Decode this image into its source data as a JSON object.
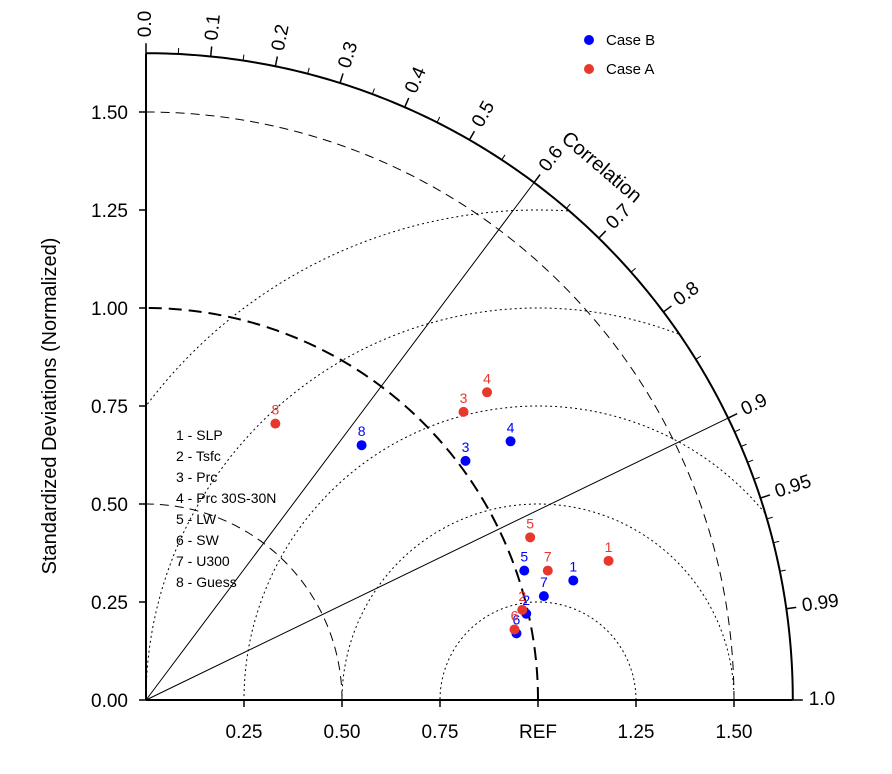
{
  "chart_data": {
    "type": "taylor",
    "ylabel": "Standardized Deviations (Normalized)",
    "correlation_label": "Correlation",
    "ref_label": "REF",
    "max_std": 1.65,
    "x_ticks": [
      {
        "value": 0.25,
        "label": "0.25"
      },
      {
        "value": 0.5,
        "label": "0.50"
      },
      {
        "value": 0.75,
        "label": "0.75"
      },
      {
        "value": 1.0,
        "label": "REF"
      },
      {
        "value": 1.25,
        "label": "1.25"
      },
      {
        "value": 1.5,
        "label": "1.50"
      }
    ],
    "y_ticks": [
      {
        "value": 0.0,
        "label": "0.00"
      },
      {
        "value": 0.25,
        "label": "0.25"
      },
      {
        "value": 0.5,
        "label": "0.50"
      },
      {
        "value": 0.75,
        "label": "0.75"
      },
      {
        "value": 1.0,
        "label": "1.00"
      },
      {
        "value": 1.25,
        "label": "1.25"
      },
      {
        "value": 1.5,
        "label": "1.50"
      }
    ],
    "corr_labels": [
      "0.0",
      "0.1",
      "0.2",
      "0.3",
      "0.4",
      "0.5",
      "0.6",
      "0.7",
      "0.8",
      "0.9",
      "0.95",
      "0.99",
      "1.0"
    ],
    "corr_minor": [
      0.05,
      0.15,
      0.25,
      0.35,
      0.45,
      0.55,
      0.65,
      0.75,
      0.85,
      0.91,
      0.92,
      0.93,
      0.94,
      0.96,
      0.97,
      0.98
    ],
    "radial_lines": [
      0.6,
      0.9
    ],
    "std_arcs": [
      0.5,
      1.5
    ],
    "rms_circles": [
      0.25,
      0.5,
      0.75,
      1.0,
      1.25
    ],
    "series": [
      {
        "name": "Case B",
        "color": "#0000ff",
        "points": [
          {
            "label": "1",
            "x": 1.09,
            "y": 0.305
          },
          {
            "label": "2",
            "x": 0.97,
            "y": 0.22
          },
          {
            "label": "3",
            "x": 0.815,
            "y": 0.61
          },
          {
            "label": "4",
            "x": 0.93,
            "y": 0.66
          },
          {
            "label": "5",
            "x": 0.965,
            "y": 0.33
          },
          {
            "label": "6",
            "x": 0.945,
            "y": 0.17
          },
          {
            "label": "7",
            "x": 1.015,
            "y": 0.265
          },
          {
            "label": "8",
            "x": 0.55,
            "y": 0.65
          }
        ]
      },
      {
        "name": "Case A",
        "color": "#e8382e",
        "points": [
          {
            "label": "1",
            "x": 1.18,
            "y": 0.355
          },
          {
            "label": "2",
            "x": 0.96,
            "y": 0.23
          },
          {
            "label": "3",
            "x": 0.81,
            "y": 0.735
          },
          {
            "label": "4",
            "x": 0.87,
            "y": 0.785
          },
          {
            "label": "5",
            "x": 0.98,
            "y": 0.415
          },
          {
            "label": "6",
            "x": 0.94,
            "y": 0.18
          },
          {
            "label": "7",
            "x": 1.025,
            "y": 0.33
          },
          {
            "label": "8",
            "x": 0.33,
            "y": 0.705
          }
        ]
      }
    ],
    "legend": [
      {
        "name": "Case B",
        "color": "#0000ff"
      },
      {
        "name": "Case A",
        "color": "#e8382e"
      }
    ],
    "variable_key": [
      "1 - SLP",
      "2 - Tsfc",
      "3 - Prc",
      "4 - Prc 30S-30N",
      "5 - LW",
      "6 - SW",
      "7 - U300",
      "8 - Guess"
    ]
  }
}
